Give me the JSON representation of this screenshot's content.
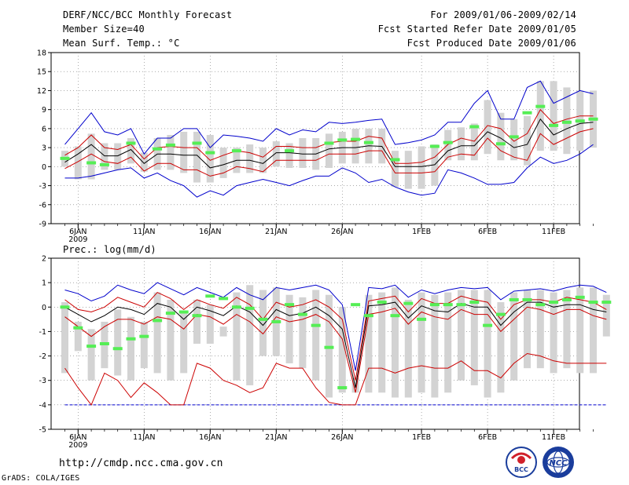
{
  "header": {
    "title": "DERF/NCC/BCC Monthly Forecast",
    "member_size": "Member Size=40",
    "variable": "Mean Surf. Temp.: °C",
    "forecast_period": "For 2009/01/06-2009/02/14",
    "start_date": "Fcst Started Refer Date 2009/01/05",
    "produced_date": "Fcst Produced Date 2009/01/06"
  },
  "footer": {
    "url": "http://cmdp.ncc.cma.gov.cn",
    "credit": "GrADS: COLA/IGES",
    "logos": [
      "BCC",
      "NCC"
    ]
  },
  "colors": {
    "envelope": "#0000cc",
    "spread": "#cc0000",
    "mean": "#000000",
    "box": "#d3d3d3",
    "obs": "#55ee55"
  },
  "chart_data": [
    {
      "type": "box-plume",
      "title": "Mean Surf. Temp.: °C",
      "ylim": [
        -9,
        18
      ],
      "yticks": [
        -9,
        -6,
        -3,
        0,
        3,
        6,
        9,
        12,
        15,
        18
      ],
      "ytick_labels": [
        "-9",
        "-6",
        "-3",
        "0",
        "3",
        "6",
        "9",
        "12",
        "15",
        "18"
      ],
      "xticks": [
        {
          "day": 1,
          "label": "6JAN",
          "sub": "2009"
        },
        {
          "day": 6,
          "label": "11JAN"
        },
        {
          "day": 11,
          "label": "16JAN"
        },
        {
          "day": 16,
          "label": "21JAN"
        },
        {
          "day": 21,
          "label": "26JAN"
        },
        {
          "day": 27,
          "label": "1FEB"
        },
        {
          "day": 32,
          "label": "6FEB"
        },
        {
          "day": 37,
          "label": "11FEB"
        }
      ],
      "days": 40,
      "series": {
        "max": [
          3.5,
          6,
          8.5,
          5.5,
          5,
          6,
          2,
          4.5,
          4.5,
          6,
          6,
          3,
          5,
          4.8,
          4.5,
          4,
          6,
          5,
          5.8,
          5.5,
          7,
          6.8,
          7,
          7.3,
          7.5,
          3.5,
          3.8,
          4.2,
          5,
          7,
          7,
          10,
          12,
          7.5,
          7.5,
          12.5,
          13.5,
          10,
          11,
          12,
          11.5
        ],
        "upper": [
          1.8,
          3,
          5,
          3,
          2.7,
          3.5,
          1.2,
          3,
          3.2,
          3,
          3,
          1,
          1.8,
          2.5,
          2.2,
          1.5,
          3.2,
          3.2,
          3,
          3,
          3.8,
          4,
          4,
          4.8,
          4.5,
          0.5,
          0.5,
          0.7,
          1.5,
          3.5,
          4.5,
          4,
          6.5,
          6,
          4,
          5.2,
          9,
          6.8,
          7.5,
          8,
          8
        ],
        "mean": [
          0.7,
          2,
          3.5,
          1.7,
          1.7,
          2.7,
          0.5,
          2,
          2,
          1.8,
          1.8,
          -0.2,
          0.3,
          1,
          1,
          0.5,
          2.2,
          2.2,
          2,
          2,
          2.8,
          3,
          3,
          3.3,
          3.2,
          0,
          0,
          0,
          0.3,
          2.5,
          3.3,
          3.3,
          5.5,
          4.5,
          3,
          3.5,
          7.5,
          5,
          6,
          6.8,
          7
        ],
        "lower": [
          -0.3,
          0.8,
          2,
          0.8,
          0.5,
          1.5,
          -0.7,
          0.5,
          0.5,
          -0.5,
          -0.5,
          -1.5,
          -1,
          0,
          -0.3,
          -0.8,
          1,
          1,
          1,
          1,
          2,
          2,
          2,
          2.5,
          2.5,
          -1,
          -1,
          -1,
          -0.8,
          1.5,
          2,
          1.8,
          4.5,
          2.5,
          1.5,
          1,
          5.2,
          3.5,
          4.5,
          5.5,
          6
        ],
        "min": [
          -1.8,
          -1.8,
          -1.5,
          -1,
          -0.5,
          -0.2,
          -1.8,
          -1,
          -2.2,
          -3,
          -4.8,
          -3.8,
          -4.5,
          -3,
          -2.5,
          -2,
          -2.5,
          -3,
          -2.2,
          -1.5,
          -1.5,
          -0.2,
          -1,
          -2.5,
          -2,
          -3.2,
          -4,
          -4.5,
          -4.2,
          -0.5,
          -1,
          -1.8,
          -2.8,
          -2.8,
          -2.5,
          -0.2,
          1.5,
          0.5,
          1,
          2,
          3.5
        ],
        "box_hi": [
          2.5,
          3.2,
          5.2,
          3.7,
          3.7,
          4.5,
          2.2,
          4.5,
          5,
          5.5,
          5.5,
          5,
          3,
          3,
          3.5,
          3,
          4,
          3.7,
          4.5,
          4.5,
          5.2,
          5.5,
          6,
          6,
          6,
          2.5,
          2.5,
          3.2,
          3.5,
          5.8,
          6.2,
          6.8,
          10.5,
          8.5,
          7.5,
          8,
          13.5,
          13.5,
          12.5,
          12,
          12
        ],
        "box_lo": [
          0,
          -2,
          -2,
          -0.5,
          -0.5,
          0.5,
          -0.8,
          -0.5,
          -0.5,
          -1,
          -2.5,
          -2.5,
          -1.8,
          -1,
          -1,
          -1,
          0,
          -0.2,
          -0.2,
          -0.5,
          -0.2,
          0.5,
          0.5,
          0.5,
          0.5,
          -3.2,
          -3.5,
          -3.5,
          -3,
          1,
          1,
          1,
          2,
          1,
          1,
          0.2,
          2.5,
          2.5,
          2,
          2.5,
          3
        ],
        "obs": [
          1.3,
          null,
          0.6,
          0.3,
          null,
          3.7,
          null,
          2.8,
          3.4,
          null,
          3.7,
          2.2,
          null,
          2.5,
          null,
          null,
          null,
          2.5,
          null,
          null,
          3.7,
          4.2,
          4.3,
          3.8,
          null,
          1.1,
          null,
          null,
          3.2,
          3.8,
          null,
          6.3,
          null,
          3.6,
          4.7,
          8.5,
          9.5,
          6.5,
          7,
          7.2,
          7.5
        ]
      }
    },
    {
      "type": "box-plume",
      "title": "Prec.: log(mm/d)",
      "ylim": [
        -5,
        2
      ],
      "yticks": [
        -5,
        -4,
        -3,
        -2,
        -1,
        0,
        1,
        2
      ],
      "ytick_labels": [
        "-5",
        "-4",
        "-3",
        "-2",
        "-1",
        "0",
        "1",
        "2"
      ],
      "xticks": [
        {
          "day": 1,
          "label": "6JAN",
          "sub": "2009"
        },
        {
          "day": 6,
          "label": "11JAN"
        },
        {
          "day": 11,
          "label": "16JAN"
        },
        {
          "day": 16,
          "label": "21JAN"
        },
        {
          "day": 21,
          "label": "26JAN"
        },
        {
          "day": 27,
          "label": "1FEB"
        },
        {
          "day": 32,
          "label": "6FEB"
        },
        {
          "day": 37,
          "label": "11FEB"
        }
      ],
      "days": 40,
      "series": {
        "max": [
          0.7,
          0.55,
          0.25,
          0.45,
          0.9,
          0.7,
          0.55,
          1,
          0.75,
          0.5,
          0.8,
          0.6,
          0.4,
          0.8,
          0.5,
          0.3,
          0.8,
          0.7,
          0.8,
          0.9,
          0.7,
          0.1,
          -2.6,
          0.8,
          0.75,
          0.9,
          0.4,
          0.7,
          0.55,
          0.7,
          0.8,
          0.75,
          0.8,
          0.3,
          0.65,
          0.7,
          0.75,
          0.65,
          0.8,
          0.9,
          0.85,
          0.6
        ],
        "upper": [
          0.3,
          -0.1,
          -0.2,
          0,
          0.4,
          0.2,
          0,
          0.6,
          0.35,
          -0.1,
          0.3,
          0.1,
          -0.05,
          0.4,
          0.1,
          -0.5,
          0.2,
          0,
          0.1,
          0.3,
          0,
          -0.5,
          -3,
          0.25,
          0.35,
          0.45,
          -0.2,
          0.35,
          0.15,
          0.15,
          0.45,
          0.3,
          0.2,
          -0.5,
          0.1,
          0.3,
          0.3,
          0.2,
          0.4,
          0.3,
          0.2,
          -0.1
        ],
        "mean": [
          0,
          -0.3,
          -0.6,
          -0.35,
          0,
          -0.1,
          -0.3,
          0.15,
          0,
          -0.5,
          0,
          -0.15,
          -0.35,
          0.05,
          -0.2,
          -0.75,
          -0.1,
          -0.35,
          -0.25,
          0,
          -0.35,
          -0.9,
          -3.3,
          0.05,
          0.1,
          0.2,
          -0.45,
          0.05,
          -0.15,
          -0.2,
          0.15,
          0,
          0,
          -0.75,
          -0.2,
          0.2,
          0.2,
          0,
          0.1,
          0.1,
          -0.1,
          -0.2
        ],
        "lower": [
          -0.4,
          -0.8,
          -1.2,
          -0.8,
          -0.5,
          -0.5,
          -0.7,
          -0.4,
          -0.5,
          -0.9,
          -0.3,
          -0.4,
          -0.7,
          -0.3,
          -0.6,
          -1.1,
          -0.4,
          -0.6,
          -0.5,
          -0.3,
          -0.6,
          -1.3,
          -3.5,
          -0.3,
          -0.2,
          -0.05,
          -0.7,
          -0.2,
          -0.4,
          -0.5,
          -0.1,
          -0.3,
          -0.3,
          -1,
          -0.5,
          0,
          -0.1,
          -0.3,
          -0.1,
          -0.1,
          -0.35,
          -0.5
        ],
        "min": [
          -2.5,
          -3.3,
          -4,
          -2.7,
          -3,
          -3.7,
          -3.1,
          -3.5,
          -4,
          -4,
          -2.3,
          -2.5,
          -3,
          -3.2,
          -3.5,
          -3.3,
          -2.3,
          -2.5,
          -2.5,
          -3.3,
          -3.9,
          -4,
          -4,
          -2.5,
          -2.5,
          -2.7,
          -2.5,
          -2.4,
          -2.5,
          -2.5,
          -2.2,
          -2.6,
          -2.6,
          -2.9,
          -2.3,
          -1.9,
          -2,
          -2.2,
          -2.3,
          -2.3,
          -2.3,
          -2.3
        ],
        "box_hi": [
          0.2,
          -0.6,
          -0.9,
          -0.6,
          -0.1,
          -0.4,
          -0.6,
          0.6,
          0.3,
          -0.2,
          0.3,
          0.1,
          -0.8,
          0.6,
          0.9,
          0.7,
          0.8,
          0.5,
          0.4,
          0.7,
          0.5,
          0,
          -2.9,
          0.5,
          0.6,
          0.8,
          0.3,
          0.6,
          0.5,
          0.6,
          0.7,
          0.7,
          0.7,
          0.2,
          0.6,
          0.7,
          0.7,
          0.6,
          0.7,
          0.8,
          0.8,
          0.5
        ],
        "box_lo": [
          -2.7,
          -1.8,
          -3,
          -2.5,
          -2.8,
          -3,
          -2.5,
          -2.7,
          -3,
          -2.7,
          -1.5,
          -1.5,
          -1.2,
          -3,
          -3.2,
          -2,
          -2,
          -2.3,
          -2.5,
          -3,
          -3.7,
          -3.5,
          -3.5,
          -3.5,
          -3.5,
          -3.7,
          -3.7,
          -3.5,
          -3.7,
          -3.5,
          -3,
          -3.2,
          -3.7,
          -3.5,
          -3,
          -2.5,
          -2.5,
          -2.7,
          -2.5,
          -2.7,
          -2.7,
          -1.2
        ],
        "obs": [
          0,
          -0.85,
          -1.6,
          -1.5,
          -1.7,
          -1.3,
          -1.2,
          -0.55,
          -0.25,
          -0.2,
          -0.35,
          0.45,
          0.35,
          0,
          -0.05,
          -0.5,
          -0.6,
          0.1,
          -0.3,
          -0.75,
          -1.65,
          -3.3,
          0.1,
          -0.35,
          0.2,
          -0.35,
          0.15,
          -0.5,
          0.1,
          0.1,
          0.1,
          0.2,
          -0.75,
          -0.3,
          0.3,
          0.3,
          0.1,
          0.2,
          0.3,
          0.4,
          0.2,
          0.2
        ]
      }
    }
  ]
}
